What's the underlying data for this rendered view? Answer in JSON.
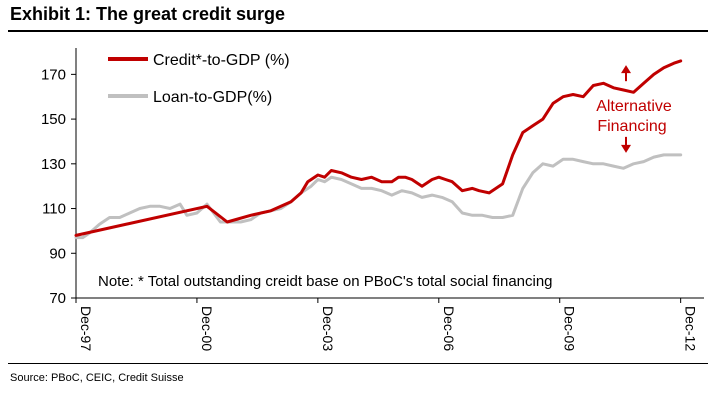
{
  "exhibit_title": "Exhibit 1: The great credit surge",
  "source": "Source: PBoC, CEIC, Credit Suisse",
  "colors": {
    "credit": "#c00000",
    "loan": "#c0c0c0",
    "annotation": "#c00000"
  },
  "chart_data": {
    "type": "line",
    "title": "Exhibit 1: The great credit surge",
    "xlabel": "",
    "ylabel": "",
    "ylim": [
      70,
      180
    ],
    "yticks": [
      70,
      90,
      110,
      130,
      150,
      170
    ],
    "xlim": [
      1997.917,
      2013.0
    ],
    "xticks": [
      {
        "label": "Dec-97",
        "x": 1997.917
      },
      {
        "label": "Dec-00",
        "x": 2000.917
      },
      {
        "label": "Dec-03",
        "x": 2003.917
      },
      {
        "label": "Dec-06",
        "x": 2006.917
      },
      {
        "label": "Dec-09",
        "x": 2009.917
      },
      {
        "label": "Dec-12",
        "x": 2012.917
      }
    ],
    "legend_position": "top-left",
    "grid": false,
    "note": "Note: * Total outstanding creidt base on PBoC's total social financing",
    "annotation": {
      "text_line1": "Alternative",
      "text_line2": "Financing",
      "x": 2013.0,
      "y_top": 175,
      "y_bottom": 134
    },
    "series": [
      {
        "name": "Credit*-to-GDP (%)",
        "x": [
          1997.917,
          2001.167,
          2001.667,
          2002.25,
          2002.75,
          2003.0,
          2003.25,
          2003.5,
          2003.667,
          2003.917,
          2004.083,
          2004.25,
          2004.5,
          2004.75,
          2005.0,
          2005.25,
          2005.5,
          2005.75,
          2005.917,
          2006.083,
          2006.25,
          2006.5,
          2006.75,
          2006.917,
          2007.083,
          2007.25,
          2007.5,
          2007.75,
          2007.917,
          2008.167,
          2008.5,
          2008.75,
          2009.0,
          2009.25,
          2009.5,
          2009.75,
          2010.0,
          2010.25,
          2010.5,
          2010.75,
          2011.0,
          2011.25,
          2011.5,
          2011.75,
          2012.0,
          2012.25,
          2012.5,
          2012.75,
          2012.917
        ],
        "values": [
          98,
          111,
          104,
          107,
          109,
          111,
          113,
          117,
          122,
          125,
          124,
          127,
          126,
          124,
          123,
          124,
          122,
          122,
          124,
          124,
          123,
          120,
          123,
          124,
          123,
          122,
          118,
          119,
          118,
          117,
          121,
          134,
          144,
          147,
          150,
          157,
          160,
          161,
          160,
          165,
          166,
          164,
          163,
          162,
          166,
          170,
          173,
          175,
          176
        ]
      },
      {
        "name": "Loan-to-GDP(%)",
        "x": [
          1997.917,
          1998.083,
          1998.25,
          1998.5,
          1998.75,
          1999.0,
          1999.25,
          1999.5,
          1999.75,
          2000.0,
          2000.25,
          2000.5,
          2000.667,
          2000.917,
          2001.167,
          2001.5,
          2001.75,
          2002.0,
          2002.25,
          2002.5,
          2002.75,
          2003.0,
          2003.25,
          2003.5,
          2003.75,
          2003.917,
          2004.083,
          2004.25,
          2004.5,
          2004.75,
          2005.0,
          2005.25,
          2005.5,
          2005.75,
          2006.0,
          2006.25,
          2006.5,
          2006.75,
          2007.0,
          2007.25,
          2007.5,
          2007.75,
          2008.0,
          2008.25,
          2008.5,
          2008.75,
          2009.0,
          2009.25,
          2009.5,
          2009.75,
          2010.0,
          2010.25,
          2010.5,
          2010.75,
          2011.0,
          2011.25,
          2011.5,
          2011.75,
          2012.0,
          2012.25,
          2012.5,
          2012.75,
          2012.917
        ],
        "values": [
          97,
          97,
          99,
          103,
          106,
          106,
          108,
          110,
          111,
          111,
          110,
          112,
          107,
          108,
          112,
          104,
          104,
          104,
          105,
          108,
          109,
          110,
          113,
          117,
          120,
          123,
          122,
          124,
          123,
          121,
          119,
          119,
          118,
          116,
          118,
          117,
          115,
          116,
          115,
          113,
          108,
          107,
          107,
          106,
          106,
          107,
          119,
          126,
          130,
          129,
          132,
          132,
          131,
          130,
          130,
          129,
          128,
          130,
          131,
          133,
          134,
          134,
          134
        ]
      }
    ]
  }
}
